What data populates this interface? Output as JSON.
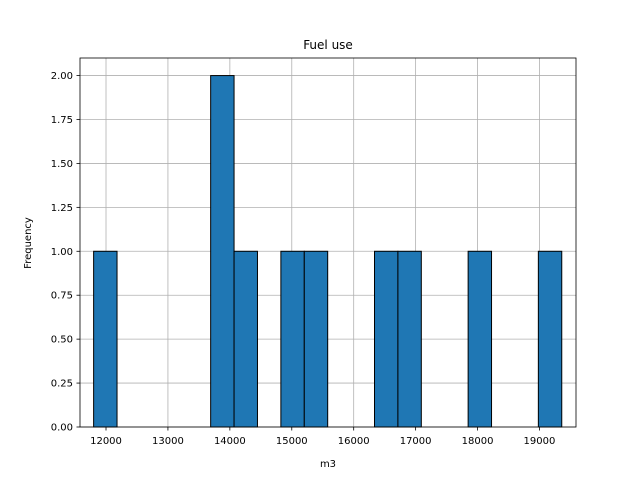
{
  "chart_data": {
    "type": "bar",
    "title": "Fuel use",
    "xlabel": "m3",
    "ylabel": "Frequency",
    "xlim": [
      11580,
      19590
    ],
    "ylim": [
      0,
      2.1
    ],
    "grid": true,
    "bin_width": 378,
    "bins": [
      {
        "start": 11800,
        "end": 12178,
        "count": 1
      },
      {
        "start": 13690,
        "end": 14068,
        "count": 2
      },
      {
        "start": 14068,
        "end": 14446,
        "count": 1
      },
      {
        "start": 14824,
        "end": 15202,
        "count": 1
      },
      {
        "start": 15202,
        "end": 15580,
        "count": 1
      },
      {
        "start": 16336,
        "end": 16714,
        "count": 1
      },
      {
        "start": 16714,
        "end": 17092,
        "count": 1
      },
      {
        "start": 17848,
        "end": 18226,
        "count": 1
      },
      {
        "start": 18982,
        "end": 19360,
        "count": 1
      }
    ],
    "x_ticks": [
      12000,
      13000,
      14000,
      15000,
      16000,
      17000,
      18000,
      19000
    ],
    "x_tick_labels": [
      "12000",
      "13000",
      "14000",
      "15000",
      "16000",
      "17000",
      "18000",
      "19000"
    ],
    "y_ticks": [
      0,
      0.25,
      0.5,
      0.75,
      1.0,
      1.25,
      1.5,
      1.75,
      2.0
    ],
    "y_tick_labels": [
      "0.00",
      "0.25",
      "0.50",
      "0.75",
      "1.00",
      "1.25",
      "1.50",
      "1.75",
      "2.00"
    ],
    "bar_color": "#1f77b4",
    "edge_color": "#000000",
    "grid_color": "#b0b0b0"
  }
}
